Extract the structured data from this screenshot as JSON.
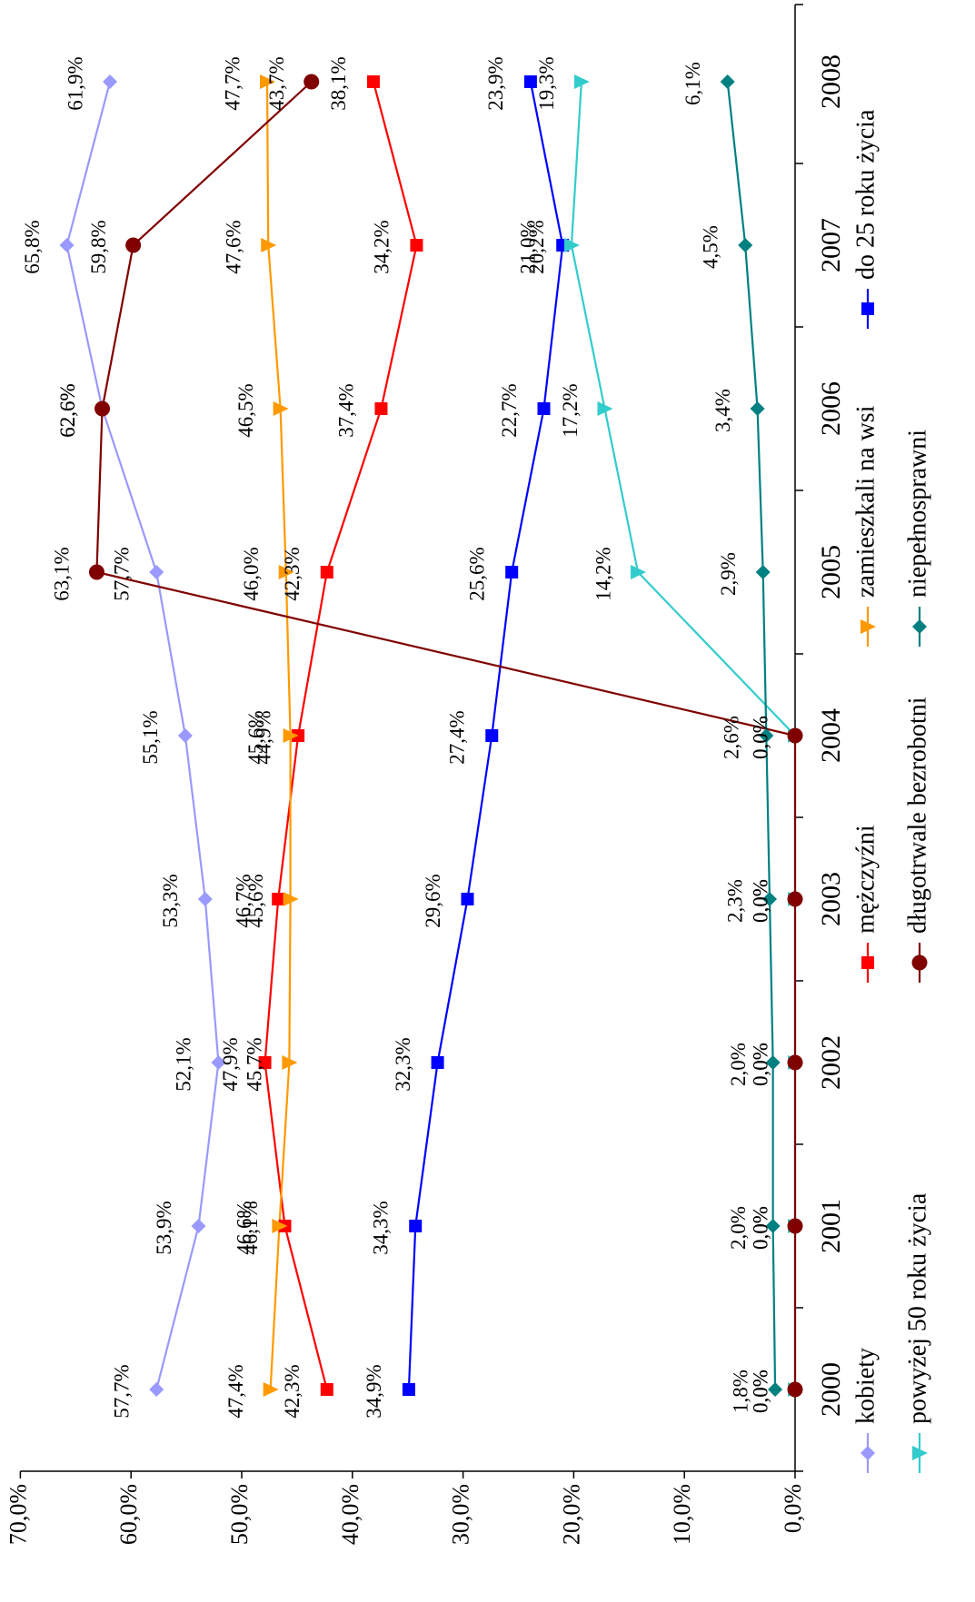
{
  "chart_data": {
    "type": "line",
    "title": "",
    "xlabel": "",
    "ylabel": "",
    "ylim": [
      0,
      70
    ],
    "y_ticks": [
      "0,0%",
      "10,0%",
      "20,0%",
      "30,0%",
      "40,0%",
      "50,0%",
      "60,0%",
      "70,0%"
    ],
    "categories": [
      "2000",
      "2001",
      "2002",
      "2003",
      "2004",
      "2005",
      "2006",
      "2007",
      "2008"
    ],
    "orientation": "rotated-90-clockwise",
    "legend_position": "bottom",
    "series": [
      {
        "name": "kobiety",
        "color": "#9999ff",
        "marker": "diamond",
        "values": [
          57.7,
          53.9,
          52.1,
          53.3,
          55.1,
          57.7,
          62.6,
          65.8,
          61.9
        ],
        "labels": [
          "57,7%",
          "53,9%",
          "52,1%",
          "53,3%",
          "55,1%",
          "57,7%",
          "62,6%",
          "65,8%",
          "61,9%"
        ]
      },
      {
        "name": "mężczyźni",
        "color": "#ff0000",
        "marker": "square",
        "values": [
          42.3,
          46.1,
          47.9,
          46.7,
          44.9,
          42.3,
          37.4,
          34.2,
          38.1
        ],
        "labels": [
          "42,3%",
          "46,1%",
          "47,9%",
          "46,7%",
          "44,9%",
          "42,3%",
          "37,4%",
          "34,2%",
          "38,1%"
        ]
      },
      {
        "name": "zamieszkali na wsi",
        "color": "#ff9900",
        "marker": "triangle",
        "values": [
          47.4,
          46.6,
          45.7,
          45.6,
          45.6,
          46.0,
          46.5,
          47.6,
          47.7
        ],
        "labels": [
          "47,4%",
          "46,6%",
          "45,7%",
          "45,6%",
          "45,6%",
          "46,0%",
          "46,5%",
          "47,6%",
          "47,7%"
        ]
      },
      {
        "name": "do 25 roku życia",
        "color": "#0000ff",
        "marker": "square",
        "values": [
          34.9,
          34.3,
          32.3,
          29.6,
          27.4,
          25.6,
          22.7,
          21.0,
          23.9
        ],
        "labels": [
          "34,9%",
          "34,3%",
          "32,3%",
          "29,6%",
          "27,4%",
          "25,6%",
          "22,7%",
          "21,0%",
          "23,9%"
        ]
      },
      {
        "name": "powyżej 50 roku życia",
        "color": "#33cccc",
        "marker": "triangle",
        "values": [
          0.0,
          0.0,
          0.0,
          0.0,
          0.0,
          14.2,
          17.2,
          20.2,
          19.3
        ],
        "labels": [
          "0,0%",
          "0,0%",
          "0,0%",
          "0,0%",
          "0,0%",
          "14,2%",
          "17,2%",
          "20,2%",
          "19,3%"
        ]
      },
      {
        "name": "długotrwale bezrobotni",
        "color": "#800000",
        "marker": "circle",
        "values": [
          0.0,
          0.0,
          0.0,
          0.0,
          0.0,
          63.1,
          62.6,
          59.8,
          43.7
        ],
        "labels": [
          "0,0%",
          "0,0%",
          "0,0%",
          "0,0%",
          "0,0%",
          "63,1%",
          "62,6%",
          "59,8%",
          "43,7%"
        ]
      },
      {
        "name": "niepełnosprawni",
        "color": "#008080",
        "marker": "diamond",
        "values": [
          1.8,
          2.0,
          2.0,
          2.3,
          2.6,
          2.9,
          3.4,
          4.5,
          6.1
        ],
        "labels": [
          "1,8%",
          "2,0%",
          "2,0%",
          "2,3%",
          "2,6%",
          "2,9%",
          "3,4%",
          "4,5%",
          "6,1%"
        ]
      }
    ]
  }
}
